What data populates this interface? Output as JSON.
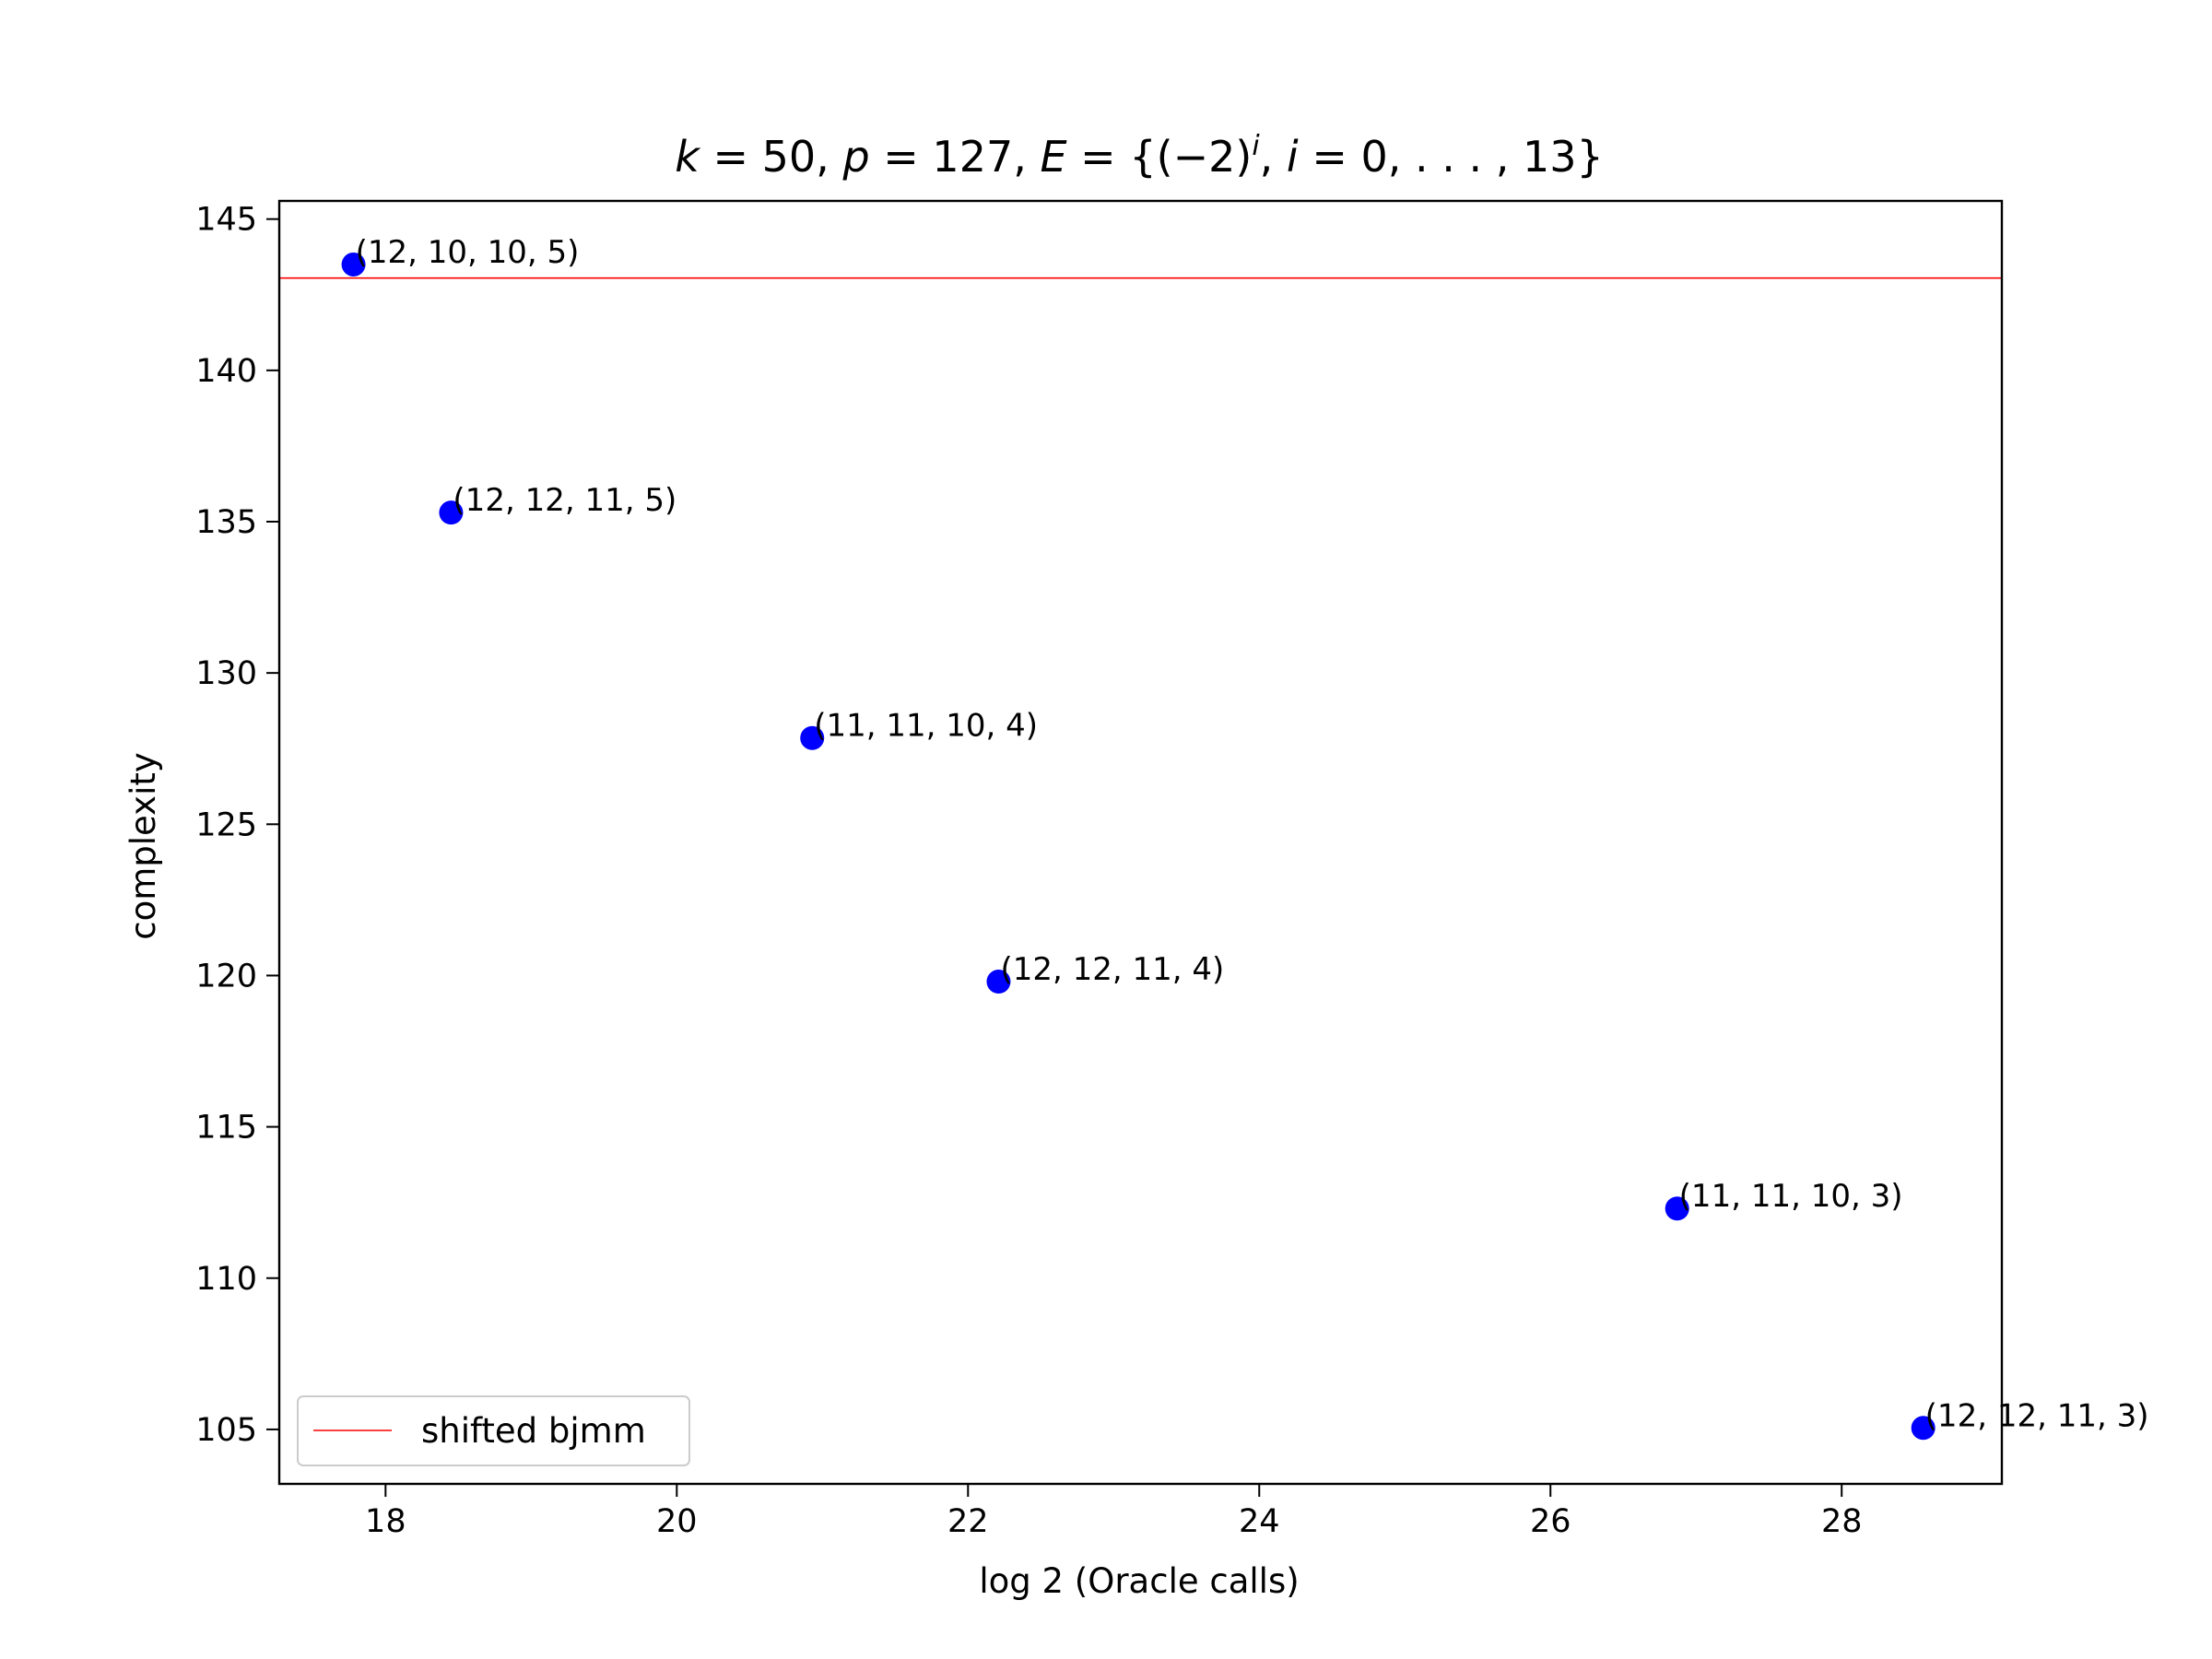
{
  "chart_data": {
    "type": "scatter",
    "title": {
      "text": "k = 50, p = 127, E = {(−2)ⁱ, i = 0, ..., 13}"
    },
    "xlabel": "log 2 (Oracle calls)",
    "ylabel": "complexity",
    "xlim": [
      17.27,
      29.1
    ],
    "ylim": [
      103.2,
      145.6
    ],
    "xticks": [
      18,
      20,
      22,
      24,
      26,
      28
    ],
    "yticks": [
      105,
      110,
      115,
      120,
      125,
      130,
      135,
      140,
      145
    ],
    "grid": false,
    "point_color": "#0000ff",
    "points": [
      {
        "x": 17.78,
        "y": 143.5,
        "label": "(12, 10, 10, 5)"
      },
      {
        "x": 18.45,
        "y": 135.3,
        "label": "(12, 12, 11, 5)"
      },
      {
        "x": 20.93,
        "y": 127.85,
        "label": "(11, 11, 10, 4)"
      },
      {
        "x": 22.21,
        "y": 119.8,
        "label": "(12, 12, 11, 4)"
      },
      {
        "x": 26.87,
        "y": 112.3,
        "label": "(11, 11, 10, 3)"
      },
      {
        "x": 28.56,
        "y": 105.05,
        "label": "(12, 12, 11, 3)"
      }
    ],
    "hline": {
      "y": 143.05,
      "color": "#ff0000",
      "name": "shifted bjmm"
    },
    "legend": {
      "position": "lower-left",
      "entries": [
        "shifted bjmm"
      ]
    }
  }
}
